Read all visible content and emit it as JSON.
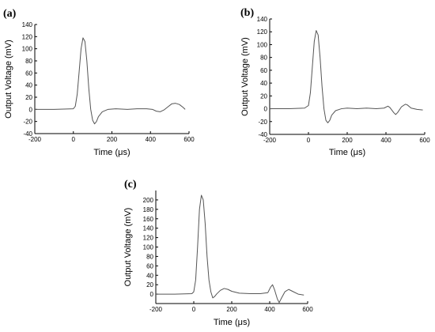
{
  "chart_data": [
    {
      "type": "line",
      "panel_label": "(a)",
      "xlabel": "Time (μs)",
      "ylabel": "Output Voltage (mV)",
      "xlim": [
        -200,
        600
      ],
      "ylim": [
        -40,
        140
      ],
      "xticks": [
        -200,
        0,
        200,
        400,
        600
      ],
      "yticks": [
        -40,
        -20,
        0,
        20,
        40,
        60,
        80,
        100,
        120,
        140
      ],
      "grid": false,
      "series": [
        {
          "x": [
            -200,
            -100,
            0,
            10,
            20,
            30,
            40,
            50,
            60,
            70,
            80,
            90,
            100,
            110,
            120,
            130,
            150,
            180,
            220,
            280,
            330,
            380,
            410,
            430,
            450,
            470,
            490,
            510,
            530,
            550,
            570,
            580
          ],
          "y": [
            0,
            0,
            1,
            5,
            25,
            62,
            100,
            118,
            112,
            80,
            35,
            0,
            -18,
            -24,
            -20,
            -12,
            -4,
            0,
            1,
            0,
            1,
            1,
            0,
            -3,
            -4,
            -1,
            4,
            9,
            10,
            8,
            3,
            0
          ]
        }
      ]
    },
    {
      "type": "line",
      "panel_label": "(b)",
      "xlabel": "Time (μs)",
      "ylabel": "Output Voltage (mV)",
      "xlim": [
        -200,
        600
      ],
      "ylim": [
        -40,
        140
      ],
      "xticks": [
        -200,
        0,
        200,
        400,
        600
      ],
      "yticks": [
        -40,
        -20,
        0,
        20,
        40,
        60,
        80,
        100,
        120,
        140
      ],
      "grid": false,
      "series": [
        {
          "x": [
            -200,
            -100,
            -20,
            0,
            10,
            20,
            30,
            40,
            50,
            60,
            70,
            80,
            90,
            100,
            110,
            120,
            140,
            170,
            200,
            250,
            300,
            350,
            390,
            410,
            420,
            440,
            450,
            460,
            480,
            500,
            510,
            530,
            560,
            590
          ],
          "y": [
            0,
            0,
            1,
            5,
            25,
            65,
            105,
            122,
            115,
            80,
            35,
            0,
            -18,
            -22,
            -18,
            -10,
            -3,
            0,
            1,
            0,
            1,
            0,
            1,
            4,
            2,
            -6,
            -9,
            -6,
            3,
            7,
            6,
            1,
            -1,
            -2
          ]
        }
      ]
    },
    {
      "type": "line",
      "panel_label": "(c)",
      "xlabel": "Time (μs)",
      "ylabel": "Output Voltage (mV)",
      "xlim": [
        -200,
        600
      ],
      "ylim": [
        -20,
        220
      ],
      "xticks": [
        -200,
        0,
        200,
        400,
        600
      ],
      "yticks": [
        0,
        20,
        40,
        60,
        80,
        100,
        120,
        140,
        160,
        180,
        200
      ],
      "grid": false,
      "series": [
        {
          "x": [
            -200,
            -100,
            -10,
            0,
            10,
            20,
            30,
            40,
            50,
            60,
            70,
            80,
            90,
            100,
            110,
            120,
            140,
            160,
            180,
            200,
            240,
            300,
            350,
            390,
            405,
            415,
            425,
            440,
            450,
            460,
            480,
            500,
            520,
            550,
            580
          ],
          "y": [
            0,
            0,
            1,
            5,
            30,
            100,
            180,
            210,
            200,
            150,
            80,
            30,
            5,
            -8,
            -5,
            0,
            8,
            12,
            10,
            6,
            2,
            1,
            1,
            3,
            15,
            20,
            10,
            -10,
            -18,
            -10,
            5,
            10,
            6,
            0,
            -2
          ]
        }
      ]
    }
  ]
}
